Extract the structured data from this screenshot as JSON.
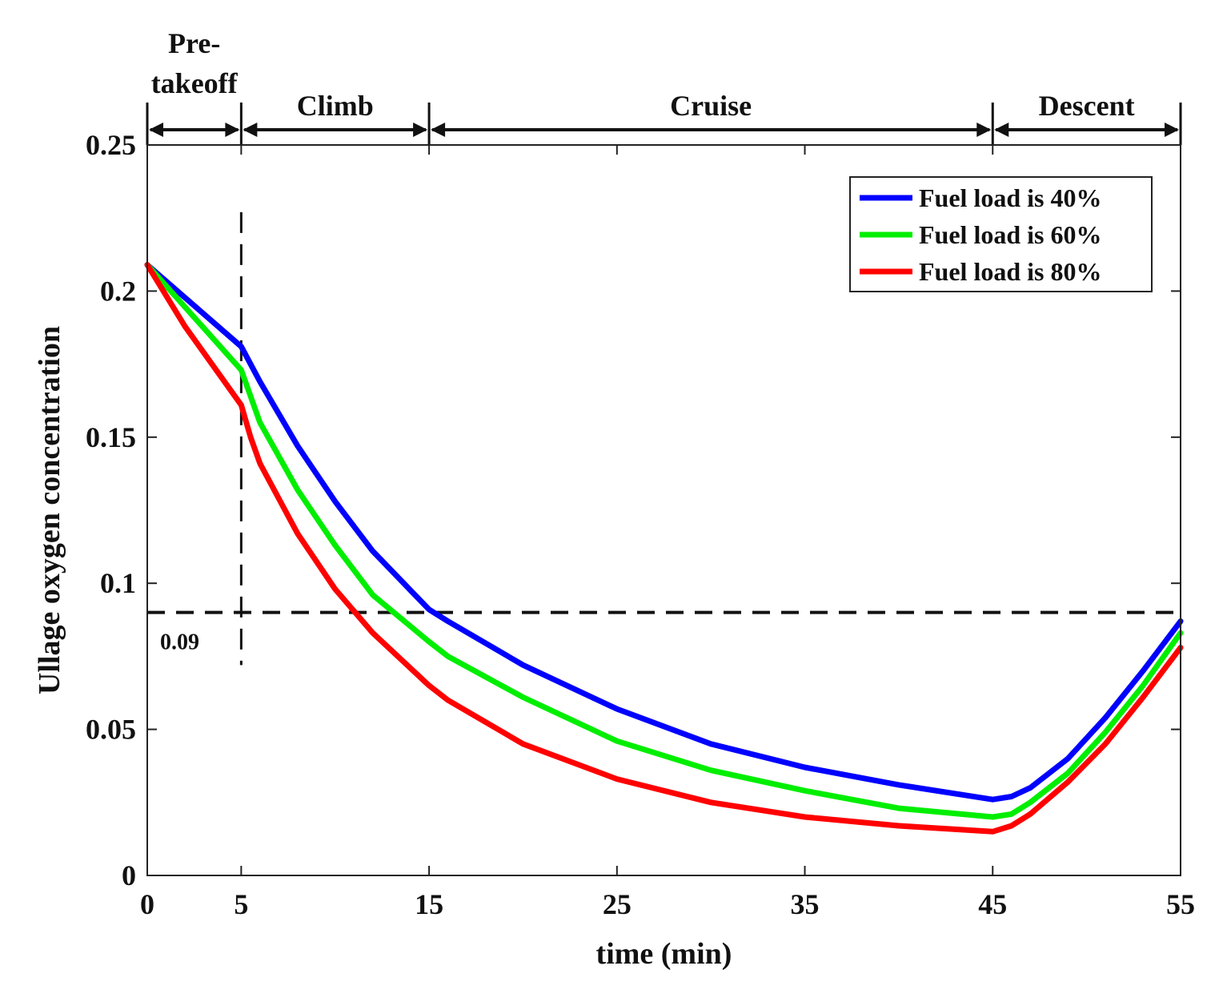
{
  "chart_data": {
    "type": "line",
    "title": "",
    "xlabel": "time (min)",
    "ylabel": "Ullage oxygen concentration",
    "xlim": [
      0,
      55
    ],
    "ylim": [
      0,
      0.25
    ],
    "xticks": [
      0,
      5,
      15,
      25,
      35,
      45,
      55
    ],
    "xtick_labels": [
      "0",
      "5",
      "15",
      "25",
      "35",
      "45",
      "55"
    ],
    "yticks": [
      0,
      0.05,
      0.1,
      0.15,
      0.2,
      0.25
    ],
    "ytick_labels": [
      "0",
      "0.05",
      "0.1",
      "0.15",
      "0.2",
      "0.25"
    ],
    "grid": false,
    "legend_position": "top-right",
    "phases": [
      {
        "label": "Pre-",
        "label2": "takeoff",
        "start": 0,
        "end": 5
      },
      {
        "label": "Climb",
        "start": 5,
        "end": 15
      },
      {
        "label": "Cruise",
        "start": 15,
        "end": 45
      },
      {
        "label": "Descent",
        "start": 45,
        "end": 55
      }
    ],
    "reference_lines": {
      "horizontal": {
        "y": 0.09,
        "label": "0.09"
      },
      "vertical": {
        "x": 5,
        "y_from": 0.072,
        "y_to": 0.227
      }
    },
    "series": [
      {
        "name": "Fuel load is 40%",
        "color": "#0000ff",
        "x": [
          0,
          5,
          6,
          8,
          10,
          12,
          15,
          16,
          20,
          25,
          30,
          35,
          40,
          45,
          46,
          47,
          49,
          51,
          53,
          55
        ],
        "y": [
          0.209,
          0.181,
          0.169,
          0.147,
          0.128,
          0.111,
          0.091,
          0.087,
          0.072,
          0.057,
          0.045,
          0.037,
          0.031,
          0.026,
          0.027,
          0.03,
          0.04,
          0.054,
          0.07,
          0.087
        ]
      },
      {
        "name": "Fuel load is 60%",
        "color": "#00ee00",
        "x": [
          0,
          5,
          6,
          8,
          10,
          12,
          15,
          16,
          20,
          25,
          30,
          35,
          40,
          45,
          46,
          47,
          49,
          51,
          53,
          55
        ],
        "y": [
          0.209,
          0.173,
          0.155,
          0.132,
          0.113,
          0.096,
          0.08,
          0.075,
          0.061,
          0.046,
          0.036,
          0.029,
          0.023,
          0.02,
          0.021,
          0.025,
          0.035,
          0.049,
          0.065,
          0.083
        ]
      },
      {
        "name": "Fuel load is 80%",
        "color": "#ff0000",
        "x": [
          0,
          2,
          5,
          5.5,
          6,
          8,
          10,
          12,
          15,
          16,
          20,
          25,
          30,
          35,
          40,
          45,
          46,
          47,
          49,
          51,
          53,
          55
        ],
        "y": [
          0.209,
          0.188,
          0.161,
          0.15,
          0.141,
          0.117,
          0.098,
          0.083,
          0.065,
          0.06,
          0.045,
          0.033,
          0.025,
          0.02,
          0.017,
          0.015,
          0.017,
          0.021,
          0.032,
          0.045,
          0.061,
          0.078
        ]
      }
    ]
  }
}
